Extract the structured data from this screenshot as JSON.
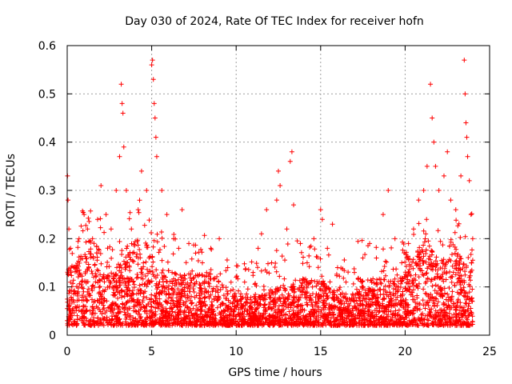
{
  "chart_data": {
    "type": "scatter",
    "title": "Day 030 of 2024, Rate Of TEC Index for receiver hofn",
    "xlabel": "GPS time / hours",
    "ylabel": "ROTI / TECUs",
    "xlim": [
      0,
      25
    ],
    "ylim": [
      0,
      0.6
    ],
    "xticks": [
      0,
      5,
      10,
      15,
      20,
      25
    ],
    "yticks": [
      0,
      0.1,
      0.2,
      0.3,
      0.4,
      0.5,
      0.6
    ],
    "xtick_labels": [
      "0",
      "5",
      "10",
      "15",
      "20",
      "25"
    ],
    "ytick_labels": [
      "0",
      "0.1",
      "0.2",
      "0.3",
      "0.4",
      "0.5",
      "0.6"
    ],
    "grid": true,
    "marker": "+",
    "color": "#ff0000",
    "series": [
      {
        "name": "ROTI",
        "points": [
          [
            0.02,
            0.33
          ],
          [
            0.05,
            0.28
          ],
          [
            0.1,
            0.22
          ],
          [
            0.2,
            0.18
          ],
          [
            0.4,
            0.14
          ],
          [
            0.7,
            0.2
          ],
          [
            1.0,
            0.25
          ],
          [
            1.2,
            0.22
          ],
          [
            1.5,
            0.2
          ],
          [
            1.8,
            0.24
          ],
          [
            2.0,
            0.31
          ],
          [
            2.3,
            0.25
          ],
          [
            2.6,
            0.22
          ],
          [
            2.9,
            0.3
          ],
          [
            3.1,
            0.37
          ],
          [
            3.2,
            0.52
          ],
          [
            3.25,
            0.48
          ],
          [
            3.3,
            0.46
          ],
          [
            3.35,
            0.39
          ],
          [
            3.5,
            0.3
          ],
          [
            3.8,
            0.22
          ],
          [
            4.2,
            0.26
          ],
          [
            4.4,
            0.34
          ],
          [
            4.7,
            0.3
          ],
          [
            5.0,
            0.56
          ],
          [
            5.05,
            0.57
          ],
          [
            5.1,
            0.53
          ],
          [
            5.15,
            0.48
          ],
          [
            5.2,
            0.45
          ],
          [
            5.25,
            0.41
          ],
          [
            5.3,
            0.37
          ],
          [
            5.6,
            0.3
          ],
          [
            5.9,
            0.25
          ],
          [
            6.3,
            0.2
          ],
          [
            6.6,
            0.18
          ],
          [
            6.8,
            0.26
          ],
          [
            7.2,
            0.19
          ],
          [
            7.6,
            0.17
          ],
          [
            8.0,
            0.15
          ],
          [
            8.5,
            0.18
          ],
          [
            9.0,
            0.2
          ],
          [
            9.5,
            0.14
          ],
          [
            10.0,
            0.12
          ],
          [
            10.5,
            0.11
          ],
          [
            11.0,
            0.13
          ],
          [
            11.3,
            0.18
          ],
          [
            11.5,
            0.21
          ],
          [
            11.8,
            0.26
          ],
          [
            12.1,
            0.15
          ],
          [
            12.4,
            0.28
          ],
          [
            12.5,
            0.34
          ],
          [
            12.6,
            0.31
          ],
          [
            13.0,
            0.22
          ],
          [
            13.2,
            0.36
          ],
          [
            13.3,
            0.38
          ],
          [
            13.4,
            0.27
          ],
          [
            13.8,
            0.19
          ],
          [
            14.2,
            0.15
          ],
          [
            14.6,
            0.2
          ],
          [
            15.0,
            0.26
          ],
          [
            15.1,
            0.24
          ],
          [
            15.4,
            0.18
          ],
          [
            15.7,
            0.23
          ],
          [
            16.0,
            0.14
          ],
          [
            16.5,
            0.11
          ],
          [
            17.0,
            0.13
          ],
          [
            17.5,
            0.16
          ],
          [
            17.9,
            0.19
          ],
          [
            18.3,
            0.16
          ],
          [
            18.7,
            0.25
          ],
          [
            19.0,
            0.3
          ],
          [
            19.4,
            0.2
          ],
          [
            19.8,
            0.15
          ],
          [
            20.2,
            0.19
          ],
          [
            20.5,
            0.22
          ],
          [
            20.8,
            0.28
          ],
          [
            21.1,
            0.3
          ],
          [
            21.3,
            0.35
          ],
          [
            21.5,
            0.52
          ],
          [
            21.6,
            0.45
          ],
          [
            21.7,
            0.4
          ],
          [
            21.8,
            0.35
          ],
          [
            22.0,
            0.3
          ],
          [
            22.3,
            0.33
          ],
          [
            22.5,
            0.38
          ],
          [
            22.7,
            0.28
          ],
          [
            23.0,
            0.26
          ],
          [
            23.3,
            0.33
          ],
          [
            23.5,
            0.57
          ],
          [
            23.55,
            0.5
          ],
          [
            23.6,
            0.44
          ],
          [
            23.65,
            0.41
          ],
          [
            23.7,
            0.37
          ],
          [
            23.8,
            0.32
          ],
          [
            23.9,
            0.25
          ],
          [
            24.0,
            0.2
          ]
        ]
      }
    ]
  }
}
